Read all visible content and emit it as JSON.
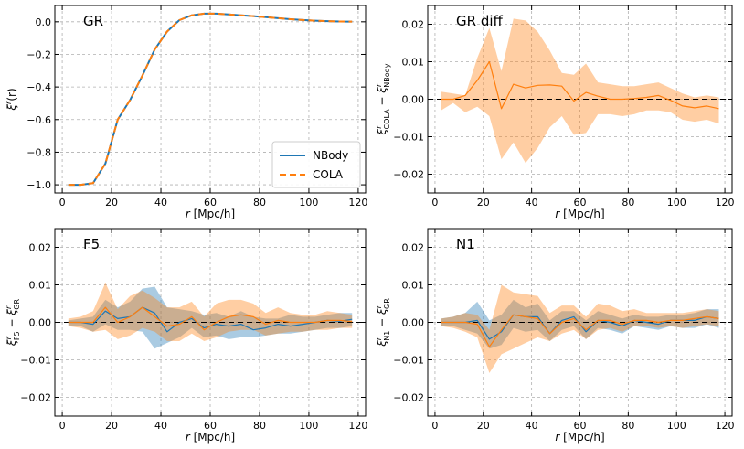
{
  "chart_data": [
    {
      "type": "line",
      "panel": "top-left",
      "title": "GR",
      "xlabel": "r [Mpc/h]",
      "ylabel": "ξ^r(r)",
      "xlim": [
        -3,
        123
      ],
      "ylim": [
        -1.05,
        0.1
      ],
      "xticks": [
        0,
        20,
        40,
        60,
        80,
        100,
        120
      ],
      "yticks": [
        -1.0,
        -0.8,
        -0.6,
        -0.4,
        -0.2,
        0.0
      ],
      "ytick_labels": [
        "−1.0",
        "−0.8",
        "−0.6",
        "−0.4",
        "−0.2",
        "0.0"
      ],
      "grid": true,
      "legend": "bottom-right",
      "x": [
        2.5,
        7.5,
        12.5,
        17.5,
        22.5,
        27.5,
        32.5,
        37.5,
        42.5,
        47.5,
        52.5,
        57.5,
        62.5,
        67.5,
        72.5,
        77.5,
        82.5,
        87.5,
        92.5,
        97.5,
        102.5,
        107.5,
        112.5,
        117.5
      ],
      "series": [
        {
          "name": "NBody",
          "color": "#1f77b4",
          "style": "solid",
          "values": [
            -1.0,
            -1.0,
            -0.99,
            -0.87,
            -0.6,
            -0.48,
            -0.33,
            -0.17,
            -0.06,
            0.01,
            0.04,
            0.05,
            0.05,
            0.045,
            0.04,
            0.035,
            0.028,
            0.022,
            0.016,
            0.011,
            0.007,
            0.004,
            0.002,
            0.001
          ]
        },
        {
          "name": "COLA",
          "color": "#ff7f0e",
          "style": "dashed",
          "values": [
            -1.0,
            -1.0,
            -0.99,
            -0.87,
            -0.6,
            -0.48,
            -0.33,
            -0.17,
            -0.06,
            0.01,
            0.04,
            0.05,
            0.05,
            0.045,
            0.04,
            0.035,
            0.028,
            0.022,
            0.016,
            0.011,
            0.007,
            0.004,
            0.002,
            0.001
          ]
        }
      ]
    },
    {
      "type": "line",
      "panel": "top-right",
      "title": "GR diff",
      "xlabel": "r [Mpc/h]",
      "ylabel": "ξ^r_COLA − ξ^r_NBody",
      "xlim": [
        -3,
        123
      ],
      "ylim": [
        -0.025,
        0.025
      ],
      "xticks": [
        0,
        20,
        40,
        60,
        80,
        100,
        120
      ],
      "yticks": [
        -0.02,
        -0.01,
        0.0,
        0.01,
        0.02
      ],
      "ytick_labels": [
        "−0.02",
        "−0.01",
        "0.00",
        "0.01",
        "0.02"
      ],
      "grid": true,
      "reference_line": 0,
      "x": [
        2.5,
        7.5,
        12.5,
        17.5,
        22.5,
        27.5,
        32.5,
        37.5,
        42.5,
        47.5,
        52.5,
        57.5,
        62.5,
        67.5,
        72.5,
        77.5,
        82.5,
        87.5,
        92.5,
        97.5,
        102.5,
        107.5,
        112.5,
        117.5
      ],
      "series": [
        {
          "name": "COLA",
          "color": "#ff7f0e",
          "values": [
            0.0,
            0.0,
            0.001,
            0.005,
            0.01,
            -0.0025,
            0.004,
            0.003,
            0.0037,
            0.0038,
            0.0035,
            -0.0005,
            0.0018,
            0.0008,
            0.0,
            0.0,
            0.0002,
            0.0005,
            0.001,
            -0.0003,
            -0.0018,
            -0.0023,
            -0.0018,
            -0.0025
          ],
          "lower": [
            -0.003,
            -0.001,
            -0.0035,
            -0.002,
            -0.0045,
            -0.016,
            -0.0115,
            -0.017,
            -0.013,
            -0.0075,
            -0.0045,
            -0.0095,
            -0.009,
            -0.004,
            -0.004,
            -0.0045,
            -0.004,
            -0.003,
            -0.003,
            -0.0035,
            -0.0055,
            -0.006,
            -0.0055,
            -0.0065
          ],
          "upper": [
            0.002,
            0.0015,
            0.001,
            0.011,
            0.019,
            0.0075,
            0.0215,
            0.021,
            0.018,
            0.013,
            0.007,
            0.0065,
            0.0095,
            0.0045,
            0.004,
            0.0035,
            0.0035,
            0.004,
            0.0045,
            0.003,
            0.0015,
            0.0005,
            0.001,
            0.0005
          ]
        }
      ]
    },
    {
      "type": "line",
      "panel": "bottom-left",
      "title": "F5",
      "xlabel": "r [Mpc/h]",
      "ylabel": "ξ^r_F5 − ξ^r_GR",
      "xlim": [
        -3,
        123
      ],
      "ylim": [
        -0.025,
        0.025
      ],
      "xticks": [
        0,
        20,
        40,
        60,
        80,
        100,
        120
      ],
      "yticks": [
        -0.02,
        -0.01,
        0.0,
        0.01,
        0.02
      ],
      "ytick_labels": [
        "−0.02",
        "−0.01",
        "0.00",
        "0.01",
        "0.02"
      ],
      "grid": true,
      "reference_line": 0,
      "x": [
        2.5,
        7.5,
        12.5,
        17.5,
        22.5,
        27.5,
        32.5,
        37.5,
        42.5,
        47.5,
        52.5,
        57.5,
        62.5,
        67.5,
        72.5,
        77.5,
        82.5,
        87.5,
        92.5,
        97.5,
        102.5,
        107.5,
        112.5,
        117.5
      ],
      "series": [
        {
          "name": "NBody",
          "color": "#1f77b4",
          "values": [
            0.0,
            0.0,
            -0.0005,
            0.003,
            0.001,
            0.0015,
            0.004,
            0.0025,
            -0.0025,
            0.0,
            0.001,
            -0.0015,
            -0.0005,
            -0.001,
            -0.0005,
            -0.002,
            -0.0015,
            -0.0005,
            -0.001,
            -0.0005,
            0.0,
            0.0005,
            0.0003,
            0.0008
          ],
          "lower": [
            -0.0008,
            -0.001,
            -0.0025,
            -0.0005,
            -0.002,
            -0.002,
            -0.0025,
            -0.007,
            -0.0055,
            -0.004,
            -0.0015,
            -0.004,
            -0.0035,
            -0.0045,
            -0.004,
            -0.004,
            -0.0035,
            -0.003,
            -0.003,
            -0.0025,
            -0.002,
            -0.0015,
            -0.0015,
            -0.001
          ],
          "upper": [
            0.0005,
            0.001,
            0.0015,
            0.006,
            0.004,
            0.0055,
            0.009,
            0.0095,
            0.004,
            0.0035,
            0.003,
            0.002,
            0.0025,
            0.0015,
            0.003,
            0.0015,
            0.001,
            0.001,
            0.002,
            0.0015,
            0.0015,
            0.002,
            0.0025,
            0.0025
          ]
        },
        {
          "name": "COLA",
          "color": "#ff7f0e",
          "values": [
            0.0,
            0.0,
            0.0,
            0.004,
            0.0,
            0.0015,
            0.004,
            0.0015,
            -0.001,
            -0.0005,
            0.0015,
            -0.002,
            0.0,
            0.0015,
            0.002,
            0.0015,
            -0.0005,
            0.0005,
            0.0,
            0.0,
            0.0,
            0.0005,
            0.0005,
            0.0002
          ],
          "lower": [
            -0.001,
            -0.0015,
            -0.0025,
            -0.002,
            -0.0045,
            -0.0035,
            -0.0015,
            -0.0025,
            -0.005,
            -0.005,
            -0.003,
            -0.005,
            -0.004,
            -0.0025,
            -0.002,
            -0.002,
            -0.0035,
            -0.003,
            -0.0025,
            -0.0025,
            -0.002,
            -0.002,
            -0.0015,
            -0.0015
          ],
          "upper": [
            0.001,
            0.0015,
            0.003,
            0.0105,
            0.0035,
            0.007,
            0.0085,
            0.0065,
            0.004,
            0.004,
            0.0055,
            0.0015,
            0.005,
            0.006,
            0.006,
            0.005,
            0.0025,
            0.004,
            0.0025,
            0.002,
            0.002,
            0.003,
            0.0025,
            0.002
          ]
        }
      ]
    },
    {
      "type": "line",
      "panel": "bottom-right",
      "title": "N1",
      "xlabel": "r [Mpc/h]",
      "ylabel": "ξ^r_N1 − ξ^r_GR",
      "xlim": [
        -3,
        123
      ],
      "ylim": [
        -0.025,
        0.025
      ],
      "xticks": [
        0,
        20,
        40,
        60,
        80,
        100,
        120
      ],
      "yticks": [
        -0.02,
        -0.01,
        0.0,
        0.01,
        0.02
      ],
      "ytick_labels": [
        "−0.02",
        "−0.01",
        "0.00",
        "0.01",
        "0.02"
      ],
      "grid": true,
      "reference_line": 0,
      "x": [
        2.5,
        7.5,
        12.5,
        17.5,
        22.5,
        27.5,
        32.5,
        37.5,
        42.5,
        47.5,
        52.5,
        57.5,
        62.5,
        67.5,
        72.5,
        77.5,
        82.5,
        87.5,
        92.5,
        97.5,
        102.5,
        107.5,
        112.5,
        117.5
      ],
      "series": [
        {
          "name": "NBody",
          "color": "#1f77b4",
          "values": [
            0.0,
            0.0,
            0.0,
            0.0005,
            -0.0045,
            -0.0025,
            0.002,
            0.0015,
            0.0015,
            -0.003,
            0.0005,
            0.0015,
            -0.0025,
            0.0005,
            0.0,
            -0.001,
            0.0005,
            0.0,
            -0.0005,
            0.0005,
            0.0005,
            0.0005,
            0.0015,
            0.001
          ],
          "lower": [
            -0.001,
            -0.001,
            -0.002,
            -0.003,
            -0.007,
            -0.006,
            -0.0015,
            -0.0025,
            -0.002,
            -0.005,
            -0.002,
            -0.001,
            -0.0045,
            -0.0015,
            -0.002,
            -0.003,
            -0.001,
            -0.0015,
            -0.002,
            -0.001,
            -0.0015,
            -0.0015,
            -0.0005,
            -0.0015
          ],
          "upper": [
            0.001,
            0.0015,
            0.0025,
            0.0055,
            0.0005,
            0.002,
            0.006,
            0.004,
            0.005,
            0.0005,
            0.003,
            0.003,
            0.0005,
            0.003,
            0.002,
            0.001,
            0.002,
            0.0015,
            0.0015,
            0.002,
            0.002,
            0.0025,
            0.0035,
            0.0035
          ]
        },
        {
          "name": "COLA",
          "color": "#ff7f0e",
          "values": [
            0.0,
            0.0,
            0.0,
            -0.0005,
            -0.0065,
            -0.002,
            0.002,
            0.0015,
            0.001,
            -0.003,
            0.0,
            0.001,
            -0.002,
            0.0005,
            0.0005,
            -0.0005,
            0.0005,
            0.0005,
            0.0,
            0.0005,
            0.0005,
            0.001,
            0.0015,
            0.001
          ],
          "lower": [
            -0.001,
            -0.0015,
            -0.0025,
            -0.004,
            -0.0135,
            -0.0085,
            -0.007,
            -0.0055,
            -0.004,
            -0.005,
            -0.003,
            -0.002,
            -0.0045,
            -0.002,
            -0.0015,
            -0.0025,
            -0.001,
            -0.001,
            -0.0015,
            -0.001,
            -0.0015,
            -0.001,
            -0.0005,
            -0.001
          ],
          "upper": [
            0.001,
            0.0015,
            0.0025,
            0.002,
            -0.002,
            0.01,
            0.008,
            0.0075,
            0.007,
            0.0025,
            0.0045,
            0.0045,
            0.0015,
            0.005,
            0.0045,
            0.003,
            0.0035,
            0.0025,
            0.0025,
            0.0025,
            0.0025,
            0.003,
            0.0035,
            0.003
          ]
        }
      ]
    }
  ]
}
